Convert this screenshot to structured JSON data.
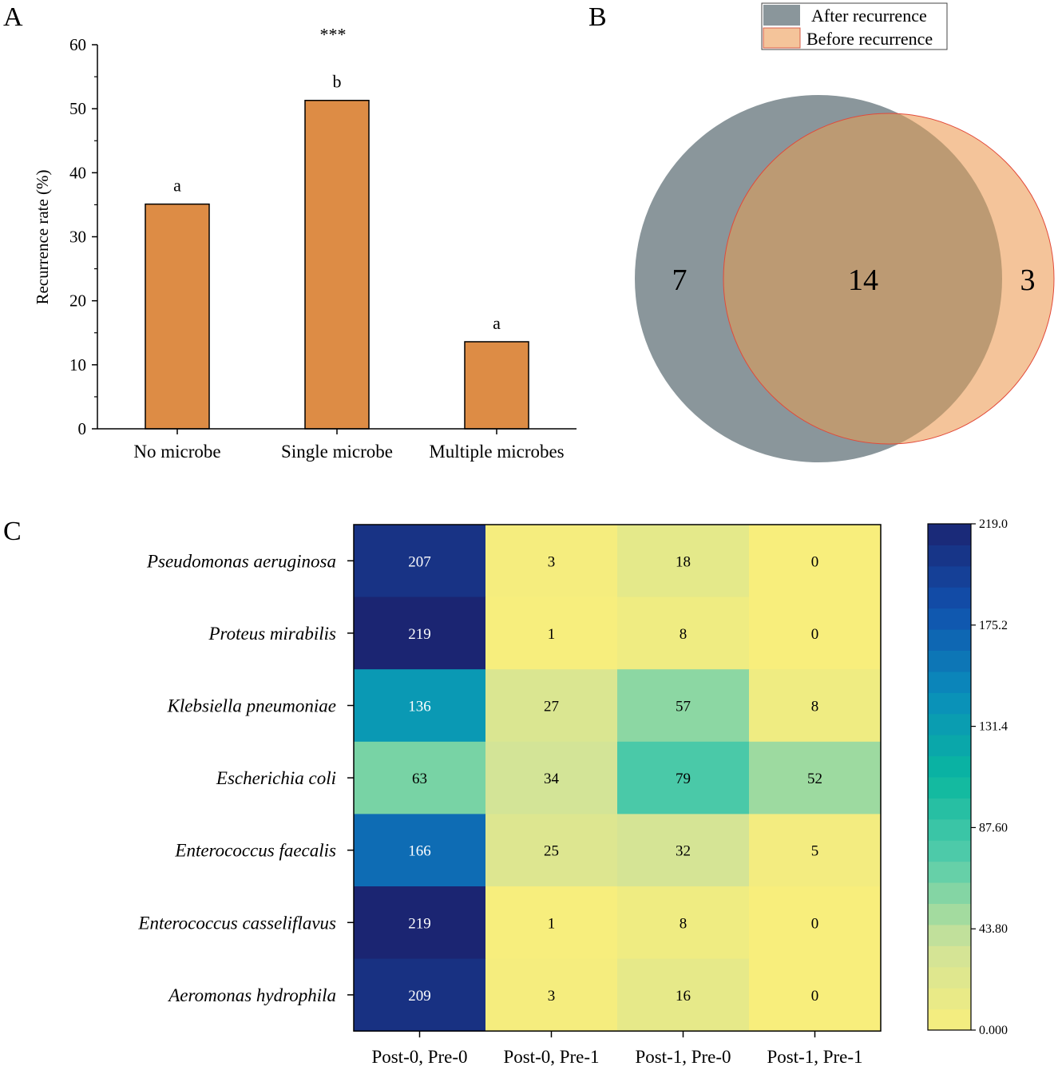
{
  "panel_labels": [
    "A",
    "B",
    "C"
  ],
  "chart_data": [
    {
      "type": "bar",
      "panel": "A",
      "categories": [
        "No microbe",
        "Single microbe",
        "Multiple microbes"
      ],
      "values": [
        35.1,
        51.3,
        13.6
      ],
      "letters": [
        "a",
        "b",
        "a"
      ],
      "significance": "***",
      "xlabel": "",
      "ylabel": "Recurrence rate (%)",
      "ylim": [
        0,
        60
      ],
      "yticks": [
        "0",
        "10",
        "20",
        "30",
        "40",
        "50",
        "60"
      ],
      "bar_color": "#dd8c45"
    },
    {
      "type": "venn",
      "panel": "B",
      "sets": [
        {
          "name": "After recurrence",
          "color": "#8a969b",
          "only": "7"
        },
        {
          "name": "Before recurrence",
          "color": "#f4c49a",
          "only": "3"
        }
      ],
      "intersection": "14",
      "intersection_color": "#bc9a73"
    },
    {
      "type": "heatmap",
      "panel": "C",
      "rows": [
        "Pseudomonas aeruginosa",
        "Proteus mirabilis",
        "Klebsiella pneumoniae",
        "Escherichia coli",
        "Enterococcus faecalis",
        "Enterococcus casseliflavus",
        "Aeromonas hydrophila"
      ],
      "columns": [
        "Post-0, Pre-0",
        "Post-0, Pre-1",
        "Post-1, Pre-0",
        "Post-1, Pre-1"
      ],
      "values": [
        [
          207,
          3,
          18,
          0
        ],
        [
          219,
          1,
          8,
          0
        ],
        [
          136,
          27,
          57,
          8
        ],
        [
          63,
          34,
          79,
          52
        ],
        [
          166,
          25,
          32,
          5
        ],
        [
          219,
          1,
          8,
          0
        ],
        [
          209,
          3,
          16,
          0
        ]
      ],
      "value_range": [
        0,
        219
      ],
      "colorbar_ticks": [
        "0.000",
        "43.80",
        "87.60",
        "131.4",
        "175.2",
        "219.0"
      ],
      "colormap": [
        "#f8ee7c",
        "#d0e399",
        "#57cdaa",
        "#0ab79f",
        "#0a8dbc",
        "#1150ad",
        "#1b2572"
      ]
    }
  ]
}
